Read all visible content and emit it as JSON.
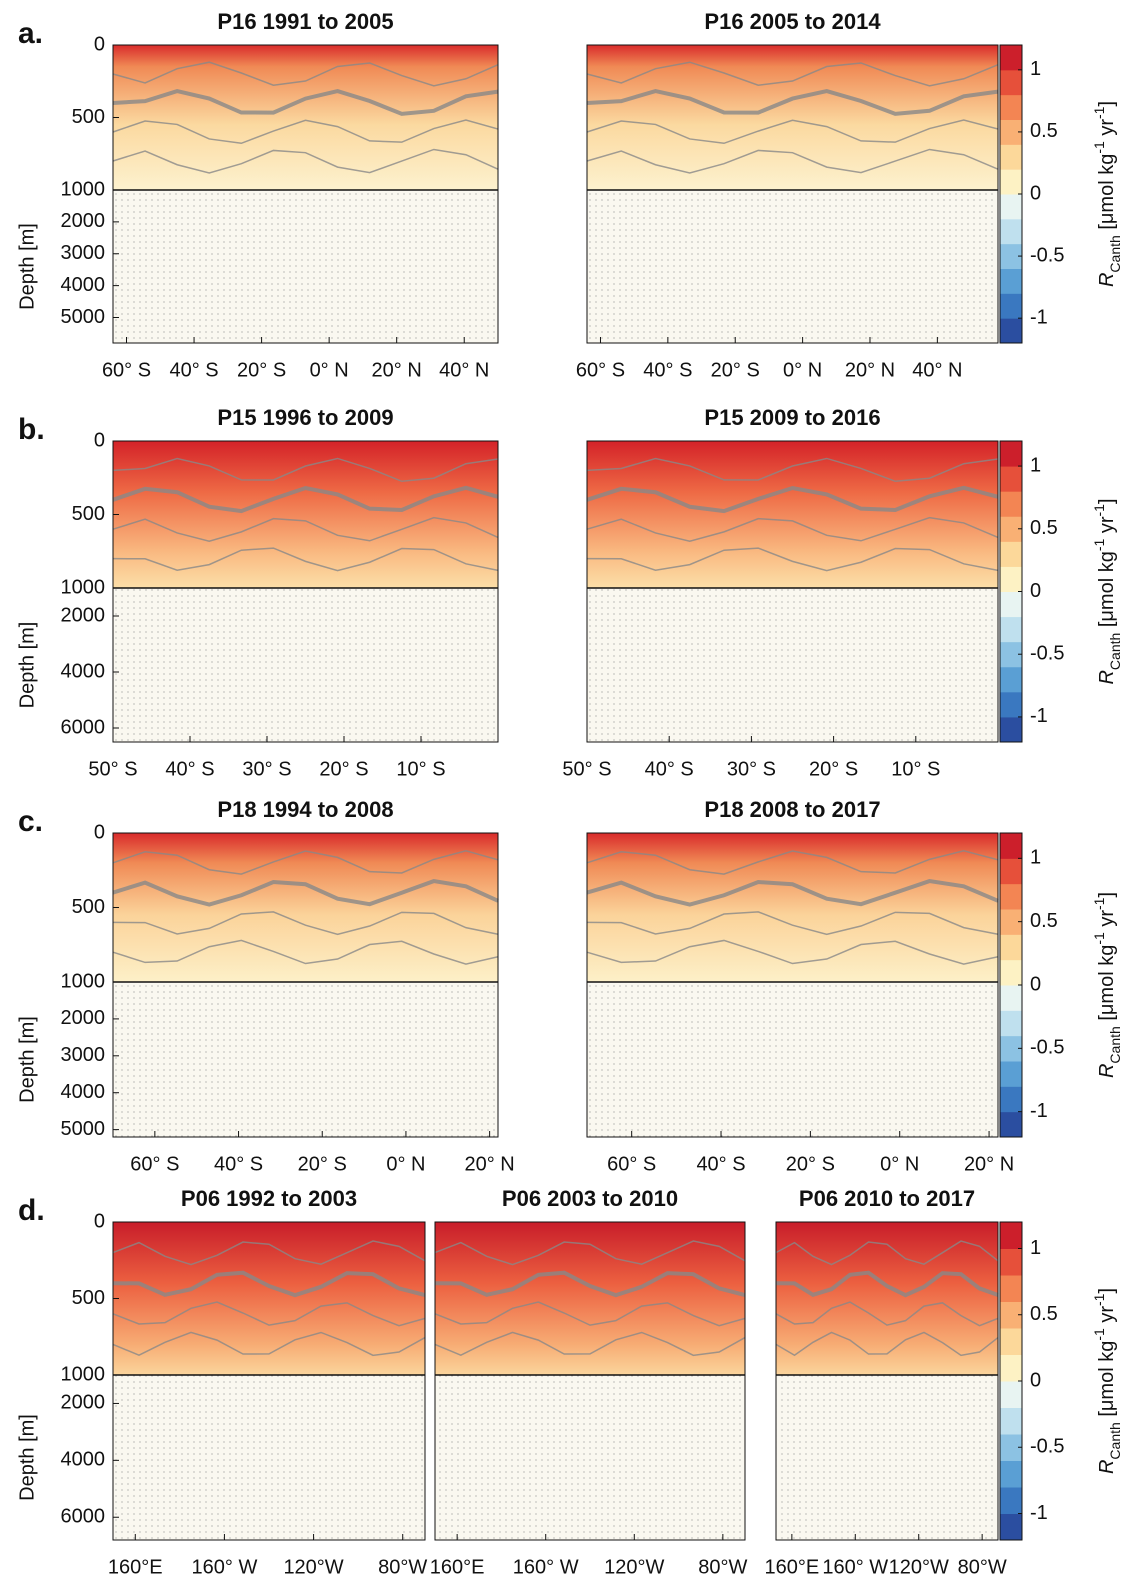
{
  "panel_labels": [
    "a.",
    "b.",
    "c.",
    "d."
  ],
  "chart_data": [
    {
      "type": "contour",
      "title": "P16 1991 to 2005",
      "ylabel": "Depth [m]",
      "ylim": [
        0,
        5800
      ],
      "ybreak": 1000,
      "yticks": [
        0,
        500,
        1000,
        2000,
        3000,
        4000,
        5000
      ],
      "xlim": [
        -64,
        50
      ],
      "xticks": [
        {
          "value": -60,
          "label": "60° S"
        },
        {
          "value": -40,
          "label": "40° S"
        },
        {
          "value": -20,
          "label": "20° S"
        },
        {
          "value": 0,
          "label": "0° N"
        },
        {
          "value": 20,
          "label": "20° N"
        },
        {
          "value": 40,
          "label": "40° N"
        }
      ]
    },
    {
      "type": "contour",
      "title": "P16 2005 to 2014",
      "ylim": [
        0,
        5800
      ],
      "ybreak": 1000,
      "xlim": [
        -64,
        58
      ],
      "xticks": [
        {
          "value": -60,
          "label": "60° S"
        },
        {
          "value": -40,
          "label": "40° S"
        },
        {
          "value": -20,
          "label": "20° S"
        },
        {
          "value": 0,
          "label": "0° N"
        },
        {
          "value": 20,
          "label": "20° N"
        },
        {
          "value": 40,
          "label": "40° N"
        }
      ]
    },
    {
      "type": "contour",
      "title": "P15 1996 to 2009",
      "ylabel": "Depth [m]",
      "ylim": [
        0,
        6500
      ],
      "ybreak": 1000,
      "yticks": [
        0,
        500,
        1000,
        2000,
        4000,
        6000
      ],
      "xlim": [
        -50,
        0
      ],
      "xticks": [
        {
          "value": -50,
          "label": "50° S"
        },
        {
          "value": -40,
          "label": "40° S"
        },
        {
          "value": -30,
          "label": "30° S"
        },
        {
          "value": -20,
          "label": "20° S"
        },
        {
          "value": -10,
          "label": "10° S"
        }
      ]
    },
    {
      "type": "contour",
      "title": "P15 2009 to 2016",
      "ylim": [
        0,
        6500
      ],
      "ybreak": 1000,
      "xlim": [
        -50,
        0
      ],
      "xticks": [
        {
          "value": -50,
          "label": "50° S"
        },
        {
          "value": -40,
          "label": "40° S"
        },
        {
          "value": -30,
          "label": "30° S"
        },
        {
          "value": -20,
          "label": "20° S"
        },
        {
          "value": -10,
          "label": "10° S"
        }
      ]
    },
    {
      "type": "contour",
      "title": "P18 1994 to 2008",
      "ylabel": "Depth [m]",
      "ylim": [
        0,
        5200
      ],
      "ybreak": 1000,
      "yticks": [
        0,
        500,
        1000,
        2000,
        3000,
        4000,
        5000
      ],
      "xlim": [
        -70,
        22
      ],
      "xticks": [
        {
          "value": -60,
          "label": "60° S"
        },
        {
          "value": -40,
          "label": "40° S"
        },
        {
          "value": -20,
          "label": "20° S"
        },
        {
          "value": 0,
          "label": "0° N"
        },
        {
          "value": 20,
          "label": "20° N"
        }
      ]
    },
    {
      "type": "contour",
      "title": "P18 2008 to 2017",
      "ylim": [
        0,
        5200
      ],
      "ybreak": 1000,
      "xlim": [
        -70,
        22
      ],
      "xticks": [
        {
          "value": -60,
          "label": "60° S"
        },
        {
          "value": -40,
          "label": "40° S"
        },
        {
          "value": -20,
          "label": "20° S"
        },
        {
          "value": 0,
          "label": "0° N"
        },
        {
          "value": 20,
          "label": "20° N"
        }
      ]
    },
    {
      "type": "contour",
      "title": "P06 1992 to 2003",
      "ylabel": "Depth [m]",
      "ylim": [
        0,
        6800
      ],
      "ybreak": 1000,
      "yticks": [
        0,
        500,
        1000,
        2000,
        4000,
        6000
      ],
      "xlim": [
        150,
        290
      ],
      "xticks": [
        {
          "value": 160,
          "label": "160°E"
        },
        {
          "value": 200,
          "label": "160° W"
        },
        {
          "value": 240,
          "label": "120°W"
        },
        {
          "value": 280,
          "label": "80°W"
        }
      ]
    },
    {
      "type": "contour",
      "title": "P06 2003 to 2010",
      "ylim": [
        0,
        6800
      ],
      "ybreak": 1000,
      "xlim": [
        150,
        290
      ],
      "xticks": [
        {
          "value": 160,
          "label": "160°E"
        },
        {
          "value": 200,
          "label": "160° W"
        },
        {
          "value": 240,
          "label": "120°W"
        },
        {
          "value": 280,
          "label": "80°W"
        }
      ]
    },
    {
      "type": "contour",
      "title": "P06 2010 to 2017",
      "ylim": [
        0,
        6800
      ],
      "ybreak": 1000,
      "xlim": [
        150,
        290
      ],
      "xticks": [
        {
          "value": 160,
          "label": "160°E"
        },
        {
          "value": 200,
          "label": "160° W"
        },
        {
          "value": 240,
          "label": "120°W"
        },
        {
          "value": 280,
          "label": "80°W"
        }
      ]
    }
  ],
  "colorbar": {
    "ylim": [
      -1.2,
      1.2
    ],
    "yticks": [
      1,
      0.5,
      0,
      -0.5,
      -1
    ],
    "colors": [
      "#2b4ea0",
      "#3a78c0",
      "#5a9fd4",
      "#8cc2e3",
      "#bfe0ee",
      "#e8f4f2",
      "#fdf2c4",
      "#fcd89a",
      "#f9b074",
      "#f38553",
      "#e6503a",
      "#cc1f2b"
    ],
    "label": [
      {
        "text": "R",
        "italic": true
      },
      {
        "text": "Canth",
        "shift": "sub"
      },
      {
        "text": " [μmol kg"
      },
      {
        "text": "-1",
        "shift": "super"
      },
      {
        "text": " yr"
      },
      {
        "text": "-1",
        "shift": "super"
      },
      {
        "text": "]"
      }
    ]
  }
}
